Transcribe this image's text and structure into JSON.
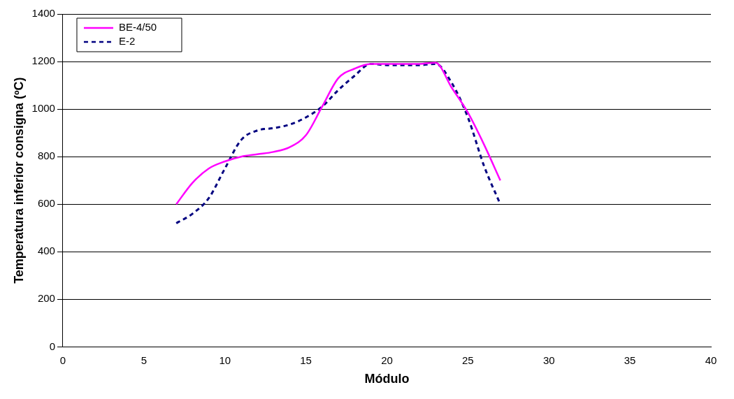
{
  "chart_data": {
    "type": "line",
    "xlabel": "Módulo",
    "ylabel": "Temperatura inferior consigna (ºC)",
    "x": [
      7,
      8,
      9,
      10,
      11,
      12,
      13,
      14,
      15,
      16,
      17,
      18,
      19,
      20,
      21,
      22,
      23,
      24,
      25,
      26,
      27
    ],
    "series": [
      {
        "name": "BE-4/50",
        "color": "#ff00ff",
        "line_style": "solid",
        "values": [
          600,
          690,
          750,
          780,
          800,
          810,
          820,
          840,
          890,
          1010,
          1130,
          1170,
          1190,
          1190,
          1190,
          1190,
          1195,
          1090,
          985,
          850,
          700
        ]
      },
      {
        "name": "E-2",
        "color": "#000080",
        "line_style": "dashed",
        "values": [
          520,
          560,
          625,
          750,
          870,
          910,
          920,
          935,
          965,
          1010,
          1080,
          1140,
          1190,
          1185,
          1185,
          1185,
          1190,
          1110,
          965,
          760,
          600
        ]
      }
    ],
    "xlim": [
      0,
      40
    ],
    "xticks": [
      0,
      5,
      10,
      15,
      20,
      25,
      30,
      35,
      40
    ],
    "ylim": [
      0,
      1400
    ],
    "yticks": [
      0,
      200,
      400,
      600,
      800,
      1000,
      1200,
      1400
    ],
    "grid": "y",
    "legend": "top left",
    "marker": "none"
  }
}
